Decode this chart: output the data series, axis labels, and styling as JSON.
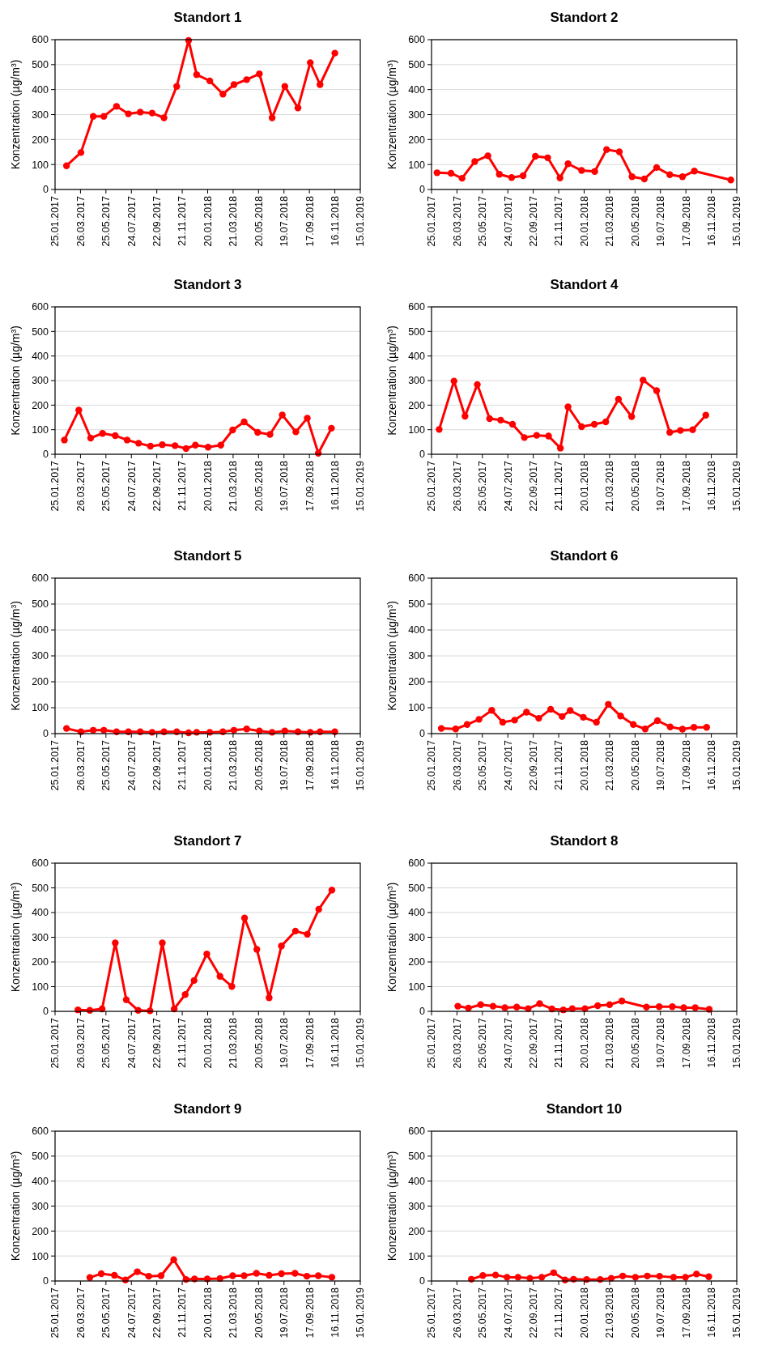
{
  "chart_data": [
    {
      "type": "line",
      "title": "Standort 1",
      "ylabel": "Konzentration (µg/m³)",
      "color": "#ff0000",
      "marker": "circle",
      "grid": "y",
      "xlim": [
        "2017-01-25",
        "2019-01-15"
      ],
      "xticks": [
        {
          "value": "2017-01-25",
          "label": "25.01.2017"
        },
        {
          "value": "2017-03-26",
          "label": "26.03.2017"
        },
        {
          "value": "2017-05-25",
          "label": "25.05.2017"
        },
        {
          "value": "2017-07-24",
          "label": "24.07.2017"
        },
        {
          "value": "2017-09-22",
          "label": "22.09.2017"
        },
        {
          "value": "2017-11-21",
          "label": "21.11.2017"
        },
        {
          "value": "2018-01-20",
          "label": "20.01.2018"
        },
        {
          "value": "2018-03-21",
          "label": "21.03.2018"
        },
        {
          "value": "2018-05-20",
          "label": "20.05.2018"
        },
        {
          "value": "2018-07-19",
          "label": "19.07.2018"
        },
        {
          "value": "2018-09-17",
          "label": "17.09.2018"
        },
        {
          "value": "2018-11-16",
          "label": "16.11.2018"
        },
        {
          "value": "2019-01-15",
          "label": "15.01.2019"
        }
      ],
      "ylim": [
        0,
        600
      ],
      "yticks": [
        0,
        100,
        200,
        300,
        400,
        500,
        600
      ],
      "x": [
        "2017-02-21",
        "2017-03-27",
        "2017-04-25",
        "2017-05-20",
        "2017-06-19",
        "2017-07-17",
        "2017-08-14",
        "2017-09-11",
        "2017-10-09",
        "2017-11-08",
        "2017-12-06",
        "2017-12-25",
        "2018-01-25",
        "2018-02-25",
        "2018-03-23",
        "2018-04-22",
        "2018-05-22",
        "2018-06-21",
        "2018-07-21",
        "2018-08-21",
        "2018-09-19",
        "2018-10-12",
        "2018-11-16"
      ],
      "values": [
        95,
        148,
        293,
        293,
        333,
        303,
        310,
        306,
        287,
        413,
        597,
        460,
        435,
        382,
        420,
        440,
        463,
        287,
        413,
        327,
        508,
        420,
        546
      ]
    },
    {
      "type": "line",
      "title": "Standort 2",
      "ylabel": "Konzentration (µg/m³)",
      "color": "#ff0000",
      "marker": "circle",
      "grid": "y",
      "xlim": [
        "2017-01-25",
        "2019-01-15"
      ],
      "xticks": [
        {
          "value": "2017-01-25",
          "label": "25.01.2017"
        },
        {
          "value": "2017-03-26",
          "label": "26.03.2017"
        },
        {
          "value": "2017-05-25",
          "label": "25.05.2017"
        },
        {
          "value": "2017-07-24",
          "label": "24.07.2017"
        },
        {
          "value": "2017-09-22",
          "label": "22.09.2017"
        },
        {
          "value": "2017-11-21",
          "label": "21.11.2017"
        },
        {
          "value": "2018-01-20",
          "label": "20.01.2018"
        },
        {
          "value": "2018-03-21",
          "label": "21.03.2018"
        },
        {
          "value": "2018-05-20",
          "label": "20.05.2018"
        },
        {
          "value": "2018-07-19",
          "label": "19.07.2018"
        },
        {
          "value": "2018-09-17",
          "label": "17.09.2018"
        },
        {
          "value": "2018-11-16",
          "label": "16.11.2018"
        },
        {
          "value": "2019-01-15",
          "label": "15.01.2019"
        }
      ],
      "ylim": [
        0,
        600
      ],
      "yticks": [
        0,
        100,
        200,
        300,
        400,
        500,
        600
      ],
      "x": [
        "2017-02-07",
        "2017-03-12",
        "2017-04-07",
        "2017-05-07",
        "2017-06-07",
        "2017-07-04",
        "2017-08-02",
        "2017-08-29",
        "2017-09-27",
        "2017-10-26",
        "2017-11-24",
        "2017-12-13",
        "2018-01-14",
        "2018-02-14",
        "2018-03-14",
        "2018-04-13",
        "2018-05-13",
        "2018-06-11",
        "2018-07-10",
        "2018-08-10",
        "2018-09-09",
        "2018-10-07",
        "2019-01-01"
      ],
      "values": [
        67,
        65,
        45,
        112,
        135,
        61,
        48,
        55,
        133,
        127,
        46,
        103,
        76,
        72,
        160,
        151,
        51,
        42,
        88,
        59,
        51,
        74,
        38
      ]
    },
    {
      "type": "line",
      "title": "Standort 3",
      "ylabel": "Konzentration (µg/m³)",
      "color": "#ff0000",
      "marker": "circle",
      "grid": "y",
      "xlim": [
        "2017-01-25",
        "2019-01-15"
      ],
      "xticks": [
        {
          "value": "2017-01-25",
          "label": "25.01.2017"
        },
        {
          "value": "2017-03-26",
          "label": "26.03.2017"
        },
        {
          "value": "2017-05-25",
          "label": "25.05.2017"
        },
        {
          "value": "2017-07-24",
          "label": "24.07.2017"
        },
        {
          "value": "2017-09-22",
          "label": "22.09.2017"
        },
        {
          "value": "2017-11-21",
          "label": "21.11.2017"
        },
        {
          "value": "2018-01-20",
          "label": "20.01.2018"
        },
        {
          "value": "2018-03-21",
          "label": "21.03.2018"
        },
        {
          "value": "2018-05-20",
          "label": "20.05.2018"
        },
        {
          "value": "2018-07-19",
          "label": "19.07.2018"
        },
        {
          "value": "2018-09-17",
          "label": "17.09.2018"
        },
        {
          "value": "2018-11-16",
          "label": "16.11.2018"
        },
        {
          "value": "2019-01-15",
          "label": "15.01.2019"
        }
      ],
      "ylim": [
        0,
        600
      ],
      "yticks": [
        0,
        100,
        200,
        300,
        400,
        500,
        600
      ],
      "x": [
        "2017-02-16",
        "2017-03-22",
        "2017-04-19",
        "2017-05-17",
        "2017-06-16",
        "2017-07-14",
        "2017-08-10",
        "2017-09-07",
        "2017-10-05",
        "2017-11-04",
        "2017-11-30",
        "2017-12-22",
        "2018-01-21",
        "2018-02-20",
        "2018-03-20",
        "2018-04-16",
        "2018-05-18",
        "2018-06-16",
        "2018-07-15",
        "2018-08-16",
        "2018-09-12",
        "2018-10-08",
        "2018-11-08"
      ],
      "values": [
        58,
        180,
        66,
        85,
        76,
        58,
        45,
        33,
        39,
        35,
        23,
        37,
        29,
        37,
        99,
        132,
        89,
        81,
        160,
        91,
        147,
        4,
        106
      ]
    },
    {
      "type": "line",
      "title": "Standort 4",
      "ylabel": "Konzentration (µg/m³)",
      "color": "#ff0000",
      "marker": "circle",
      "grid": "y",
      "xlim": [
        "2017-01-25",
        "2019-01-15"
      ],
      "xticks": [
        {
          "value": "2017-01-25",
          "label": "25.01.2017"
        },
        {
          "value": "2017-03-26",
          "label": "26.03.2017"
        },
        {
          "value": "2017-05-25",
          "label": "25.05.2017"
        },
        {
          "value": "2017-07-24",
          "label": "24.07.2017"
        },
        {
          "value": "2017-09-22",
          "label": "22.09.2017"
        },
        {
          "value": "2017-11-21",
          "label": "21.11.2017"
        },
        {
          "value": "2018-01-20",
          "label": "20.01.2018"
        },
        {
          "value": "2018-03-21",
          "label": "21.03.2018"
        },
        {
          "value": "2018-05-20",
          "label": "20.05.2018"
        },
        {
          "value": "2018-07-19",
          "label": "19.07.2018"
        },
        {
          "value": "2018-09-17",
          "label": "17.09.2018"
        },
        {
          "value": "2018-11-16",
          "label": "16.11.2018"
        },
        {
          "value": "2019-01-15",
          "label": "15.01.2019"
        }
      ],
      "ylim": [
        0,
        600
      ],
      "yticks": [
        0,
        100,
        200,
        300,
        400,
        500,
        600
      ],
      "x": [
        "2017-02-12",
        "2017-03-19",
        "2017-04-14",
        "2017-05-13",
        "2017-06-11",
        "2017-07-07",
        "2017-08-04",
        "2017-09-01",
        "2017-09-30",
        "2017-10-28",
        "2017-11-25",
        "2017-12-13",
        "2018-01-14",
        "2018-02-13",
        "2018-03-12",
        "2018-04-11",
        "2018-05-12",
        "2018-06-08",
        "2018-07-10",
        "2018-08-10",
        "2018-09-04",
        "2018-10-03",
        "2018-11-03"
      ],
      "values": [
        101,
        298,
        155,
        284,
        145,
        139,
        122,
        68,
        77,
        74,
        25,
        193,
        112,
        122,
        132,
        224,
        153,
        302,
        259,
        89,
        97,
        100,
        159
      ]
    },
    {
      "type": "line",
      "title": "Standort 5",
      "ylabel": "Konzentration (µg/m³)",
      "color": "#ff0000",
      "marker": "circle",
      "grid": "y",
      "xlim": [
        "2017-01-25",
        "2019-01-15"
      ],
      "xticks": [
        {
          "value": "2017-01-25",
          "label": "25.01.2017"
        },
        {
          "value": "2017-03-26",
          "label": "26.03.2017"
        },
        {
          "value": "2017-05-25",
          "label": "25.05.2017"
        },
        {
          "value": "2017-07-24",
          "label": "24.07.2017"
        },
        {
          "value": "2017-09-22",
          "label": "22.09.2017"
        },
        {
          "value": "2017-11-21",
          "label": "21.11.2017"
        },
        {
          "value": "2018-01-20",
          "label": "20.01.2018"
        },
        {
          "value": "2018-03-21",
          "label": "21.03.2018"
        },
        {
          "value": "2018-05-20",
          "label": "20.05.2018"
        },
        {
          "value": "2018-07-19",
          "label": "19.07.2018"
        },
        {
          "value": "2018-09-17",
          "label": "17.09.2018"
        },
        {
          "value": "2018-11-16",
          "label": "16.11.2018"
        },
        {
          "value": "2019-01-15",
          "label": "15.01.2019"
        }
      ],
      "ylim": [
        0,
        600
      ],
      "yticks": [
        0,
        100,
        200,
        300,
        400,
        500,
        600
      ],
      "x": [
        "2017-02-21",
        "2017-03-27",
        "2017-04-25",
        "2017-05-20",
        "2017-06-19",
        "2017-07-17",
        "2017-08-14",
        "2017-09-11",
        "2017-10-09",
        "2017-11-08",
        "2017-12-06",
        "2017-12-25",
        "2018-01-25",
        "2018-02-25",
        "2018-03-23",
        "2018-04-22",
        "2018-05-22",
        "2018-06-21",
        "2018-07-21",
        "2018-08-21",
        "2018-09-19",
        "2018-10-12",
        "2018-11-16"
      ],
      "values": [
        20,
        7,
        13,
        13,
        7,
        7,
        7,
        5,
        7,
        7,
        3,
        5,
        5,
        7,
        13,
        18,
        10,
        5,
        10,
        7,
        5,
        7,
        7
      ]
    },
    {
      "type": "line",
      "title": "Standort 6",
      "ylabel": "Konzentration (µg/m³)",
      "color": "#ff0000",
      "marker": "circle",
      "grid": "y",
      "xlim": [
        "2017-01-25",
        "2019-01-15"
      ],
      "xticks": [
        {
          "value": "2017-01-25",
          "label": "25.01.2017"
        },
        {
          "value": "2017-03-26",
          "label": "26.03.2017"
        },
        {
          "value": "2017-05-25",
          "label": "25.05.2017"
        },
        {
          "value": "2017-07-24",
          "label": "24.07.2017"
        },
        {
          "value": "2017-09-22",
          "label": "22.09.2017"
        },
        {
          "value": "2017-11-21",
          "label": "21.11.2017"
        },
        {
          "value": "2018-01-20",
          "label": "20.01.2018"
        },
        {
          "value": "2018-03-21",
          "label": "21.03.2018"
        },
        {
          "value": "2018-05-20",
          "label": "20.05.2018"
        },
        {
          "value": "2018-07-19",
          "label": "19.07.2018"
        },
        {
          "value": "2018-09-17",
          "label": "17.09.2018"
        },
        {
          "value": "2018-11-16",
          "label": "16.11.2018"
        },
        {
          "value": "2019-01-15",
          "label": "15.01.2019"
        }
      ],
      "ylim": [
        0,
        600
      ],
      "yticks": [
        0,
        100,
        200,
        300,
        400,
        500,
        600
      ],
      "x": [
        "2017-02-17",
        "2017-03-23",
        "2017-04-19",
        "2017-05-17",
        "2017-06-16",
        "2017-07-12",
        "2017-08-09",
        "2017-09-06",
        "2017-10-05",
        "2017-11-02",
        "2017-11-29",
        "2017-12-18",
        "2018-01-18",
        "2018-02-18",
        "2018-03-18",
        "2018-04-16",
        "2018-05-16",
        "2018-06-13",
        "2018-07-12",
        "2018-08-11",
        "2018-09-09",
        "2018-10-06",
        "2018-11-05"
      ],
      "values": [
        20,
        18,
        35,
        55,
        90,
        44,
        52,
        83,
        59,
        94,
        66,
        89,
        63,
        44,
        113,
        68,
        35,
        18,
        50,
        26,
        17,
        24,
        24
      ]
    },
    {
      "type": "line",
      "title": "Standort 7",
      "ylabel": "Konzentration (µg/m³)",
      "color": "#ff0000",
      "marker": "circle",
      "grid": "y",
      "xlim": [
        "2017-01-25",
        "2019-01-15"
      ],
      "xticks": [
        {
          "value": "2017-01-25",
          "label": "25.01.2017"
        },
        {
          "value": "2017-03-26",
          "label": "26.03.2017"
        },
        {
          "value": "2017-05-25",
          "label": "25.05.2017"
        },
        {
          "value": "2017-07-24",
          "label": "24.07.2017"
        },
        {
          "value": "2017-09-22",
          "label": "22.09.2017"
        },
        {
          "value": "2017-11-21",
          "label": "21.11.2017"
        },
        {
          "value": "2018-01-20",
          "label": "20.01.2018"
        },
        {
          "value": "2018-03-21",
          "label": "21.03.2018"
        },
        {
          "value": "2018-05-20",
          "label": "20.05.2018"
        },
        {
          "value": "2018-07-19",
          "label": "19.07.2018"
        },
        {
          "value": "2018-09-17",
          "label": "17.09.2018"
        },
        {
          "value": "2018-11-16",
          "label": "16.11.2018"
        },
        {
          "value": "2019-01-15",
          "label": "15.01.2019"
        }
      ],
      "ylim": [
        0,
        600
      ],
      "yticks": [
        0,
        100,
        200,
        300,
        400,
        500,
        600
      ],
      "x": [
        "2017-03-20",
        "2017-04-17",
        "2017-05-16",
        "2017-06-16",
        "2017-07-12",
        "2017-08-09",
        "2017-09-06",
        "2017-10-05",
        "2017-11-02",
        "2017-11-28",
        "2017-12-19",
        "2018-01-18",
        "2018-02-18",
        "2018-03-18",
        "2018-04-17",
        "2018-05-16",
        "2018-06-14",
        "2018-07-13",
        "2018-08-15",
        "2018-09-12",
        "2018-10-09",
        "2018-11-09"
      ],
      "values": [
        6,
        4,
        10,
        277,
        47,
        4,
        2,
        277,
        10,
        68,
        125,
        232,
        142,
        101,
        378,
        251,
        55,
        265,
        325,
        312,
        413,
        491
      ]
    },
    {
      "type": "line",
      "title": "Standort 8",
      "ylabel": "Konzentration (µg/m³)",
      "color": "#ff0000",
      "marker": "circle",
      "grid": "y",
      "xlim": [
        "2017-01-25",
        "2019-01-15"
      ],
      "xticks": [
        {
          "value": "2017-01-25",
          "label": "25.01.2017"
        },
        {
          "value": "2017-03-26",
          "label": "26.03.2017"
        },
        {
          "value": "2017-05-25",
          "label": "25.05.2017"
        },
        {
          "value": "2017-07-24",
          "label": "24.07.2017"
        },
        {
          "value": "2017-09-22",
          "label": "22.09.2017"
        },
        {
          "value": "2017-11-21",
          "label": "21.11.2017"
        },
        {
          "value": "2018-01-20",
          "label": "20.01.2018"
        },
        {
          "value": "2018-03-21",
          "label": "21.03.2018"
        },
        {
          "value": "2018-05-20",
          "label": "20.05.2018"
        },
        {
          "value": "2018-07-19",
          "label": "19.07.2018"
        },
        {
          "value": "2018-09-17",
          "label": "17.09.2018"
        },
        {
          "value": "2018-11-16",
          "label": "16.11.2018"
        },
        {
          "value": "2019-01-15",
          "label": "15.01.2019"
        }
      ],
      "ylim": [
        0,
        600
      ],
      "yticks": [
        0,
        100,
        200,
        300,
        400,
        500,
        600
      ],
      "x": [
        "2017-03-28",
        "2017-04-22",
        "2017-05-21",
        "2017-06-19",
        "2017-07-17",
        "2017-08-14",
        "2017-09-10",
        "2017-10-07",
        "2017-11-05",
        "2017-12-02",
        "2017-12-23",
        "2018-01-22",
        "2018-02-21",
        "2018-03-21",
        "2018-04-19",
        "2018-06-16",
        "2018-07-16",
        "2018-08-16",
        "2018-09-12",
        "2018-10-09",
        "2018-11-11"
      ],
      "values": [
        21,
        13,
        27,
        21,
        15,
        17,
        11,
        31,
        10,
        6,
        11,
        11,
        23,
        27,
        42,
        17,
        19,
        19,
        15,
        15,
        8
      ]
    },
    {
      "type": "line",
      "title": "Standort 9",
      "ylabel": "Konzentration (µg/m³)",
      "color": "#ff0000",
      "marker": "circle",
      "grid": "y",
      "xlim": [
        "2017-01-25",
        "2019-01-15"
      ],
      "xticks": [
        {
          "value": "2017-01-25",
          "label": "25.01.2017"
        },
        {
          "value": "2017-03-26",
          "label": "26.03.2017"
        },
        {
          "value": "2017-05-25",
          "label": "25.05.2017"
        },
        {
          "value": "2017-07-24",
          "label": "24.07.2017"
        },
        {
          "value": "2017-09-22",
          "label": "22.09.2017"
        },
        {
          "value": "2017-11-21",
          "label": "21.11.2017"
        },
        {
          "value": "2018-01-20",
          "label": "20.01.2018"
        },
        {
          "value": "2018-03-21",
          "label": "21.03.2018"
        },
        {
          "value": "2018-05-20",
          "label": "20.05.2018"
        },
        {
          "value": "2018-07-19",
          "label": "19.07.2018"
        },
        {
          "value": "2018-09-17",
          "label": "17.09.2018"
        },
        {
          "value": "2018-11-16",
          "label": "16.11.2018"
        },
        {
          "value": "2019-01-15",
          "label": "15.01.2019"
        }
      ],
      "ylim": [
        0,
        600
      ],
      "yticks": [
        0,
        100,
        200,
        300,
        400,
        500,
        600
      ],
      "x": [
        "2017-04-17",
        "2017-05-14",
        "2017-06-14",
        "2017-07-10",
        "2017-08-07",
        "2017-09-03",
        "2017-10-02",
        "2017-11-01",
        "2017-11-30",
        "2017-12-20",
        "2018-01-19",
        "2018-02-18",
        "2018-03-20",
        "2018-04-16",
        "2018-05-15",
        "2018-06-14",
        "2018-07-13",
        "2018-08-14",
        "2018-09-11",
        "2018-10-08",
        "2018-11-09"
      ],
      "values": [
        14,
        29,
        23,
        4,
        37,
        19,
        21,
        85,
        6,
        8,
        8,
        10,
        21,
        21,
        31,
        23,
        29,
        31,
        19,
        21,
        15
      ]
    },
    {
      "type": "line",
      "title": "Standort 10",
      "ylabel": "Konzentration (µg/m³)",
      "color": "#ff0000",
      "marker": "circle",
      "grid": "y",
      "xlim": [
        "2017-01-25",
        "2019-01-15"
      ],
      "xticks": [
        {
          "value": "2017-01-25",
          "label": "25.01.2017"
        },
        {
          "value": "2017-03-26",
          "label": "26.03.2017"
        },
        {
          "value": "2017-05-25",
          "label": "25.05.2017"
        },
        {
          "value": "2017-07-24",
          "label": "24.07.2017"
        },
        {
          "value": "2017-09-22",
          "label": "22.09.2017"
        },
        {
          "value": "2017-11-21",
          "label": "21.11.2017"
        },
        {
          "value": "2018-01-20",
          "label": "20.01.2018"
        },
        {
          "value": "2018-03-21",
          "label": "21.03.2018"
        },
        {
          "value": "2018-05-20",
          "label": "20.05.2018"
        },
        {
          "value": "2018-07-19",
          "label": "19.07.2018"
        },
        {
          "value": "2018-09-17",
          "label": "17.09.2018"
        },
        {
          "value": "2018-11-16",
          "label": "16.11.2018"
        },
        {
          "value": "2019-01-15",
          "label": "15.01.2019"
        }
      ],
      "ylim": [
        0,
        600
      ],
      "yticks": [
        0,
        100,
        200,
        300,
        400,
        500,
        600
      ],
      "x": [
        "2017-04-29",
        "2017-05-26",
        "2017-06-25",
        "2017-07-22",
        "2017-08-17",
        "2017-09-14",
        "2017-10-12",
        "2017-11-09",
        "2017-12-06",
        "2017-12-26",
        "2018-01-26",
        "2018-02-27",
        "2018-03-25",
        "2018-04-21",
        "2018-05-21",
        "2018-06-18",
        "2018-07-17",
        "2018-08-19",
        "2018-09-16",
        "2018-10-12",
        "2018-11-10"
      ],
      "values": [
        7,
        22,
        24,
        15,
        15,
        11,
        15,
        33,
        4,
        7,
        6,
        6,
        11,
        20,
        15,
        20,
        19,
        15,
        15,
        28,
        17
      ]
    }
  ]
}
